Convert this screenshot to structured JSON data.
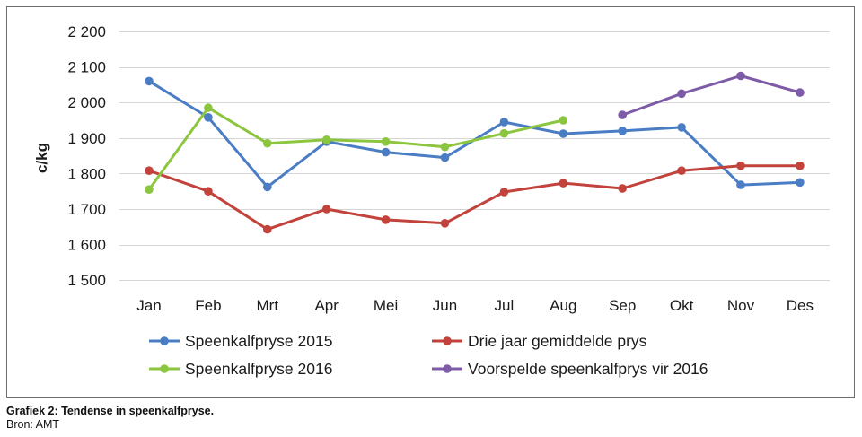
{
  "chart_data": {
    "type": "line",
    "title": "Grafiek 2: Tendense in speenkalfpryse.",
    "source": "Bron: AMT",
    "categories": [
      "Jan",
      "Feb",
      "Mrt",
      "Apr",
      "Mei",
      "Jun",
      "Jul",
      "Aug",
      "Sep",
      "Okt",
      "Nov",
      "Des"
    ],
    "ylabel": "c/kg",
    "ylim": [
      1500,
      2200
    ],
    "yticks": [
      2200,
      2100,
      2000,
      1900,
      1800,
      1700,
      1600,
      1500
    ],
    "ytick_labels": [
      "2 200",
      "2 100",
      "2 000",
      "1 900",
      "1 800",
      "1 700",
      "1 600",
      "1 500"
    ],
    "grid": true,
    "legend_position": "bottom",
    "series": [
      {
        "name": "Speenkalfpryse 2015",
        "color": "#4a7dc4",
        "values": [
          2060,
          1958,
          1762,
          1890,
          1860,
          1845,
          1945,
          1912,
          1920,
          1930,
          1768,
          1775
        ]
      },
      {
        "name": "Drie jaar gemiddelde prys",
        "color": "#c2423c",
        "values": [
          1808,
          1750,
          1643,
          1700,
          1670,
          1660,
          1748,
          1773,
          1758,
          1808,
          1822,
          1822
        ]
      },
      {
        "name": "Speenkalfpryse 2016",
        "color": "#8cc63f",
        "values": [
          1755,
          1985,
          1885,
          1895,
          1890,
          1875,
          1913,
          1950,
          null,
          null,
          null,
          null
        ]
      },
      {
        "name": "Voorspelde speenkalfprys vir 2016",
        "color": "#7d5ba6",
        "values": [
          null,
          null,
          null,
          null,
          null,
          null,
          null,
          null,
          1965,
          2025,
          2075,
          2028
        ]
      }
    ]
  }
}
